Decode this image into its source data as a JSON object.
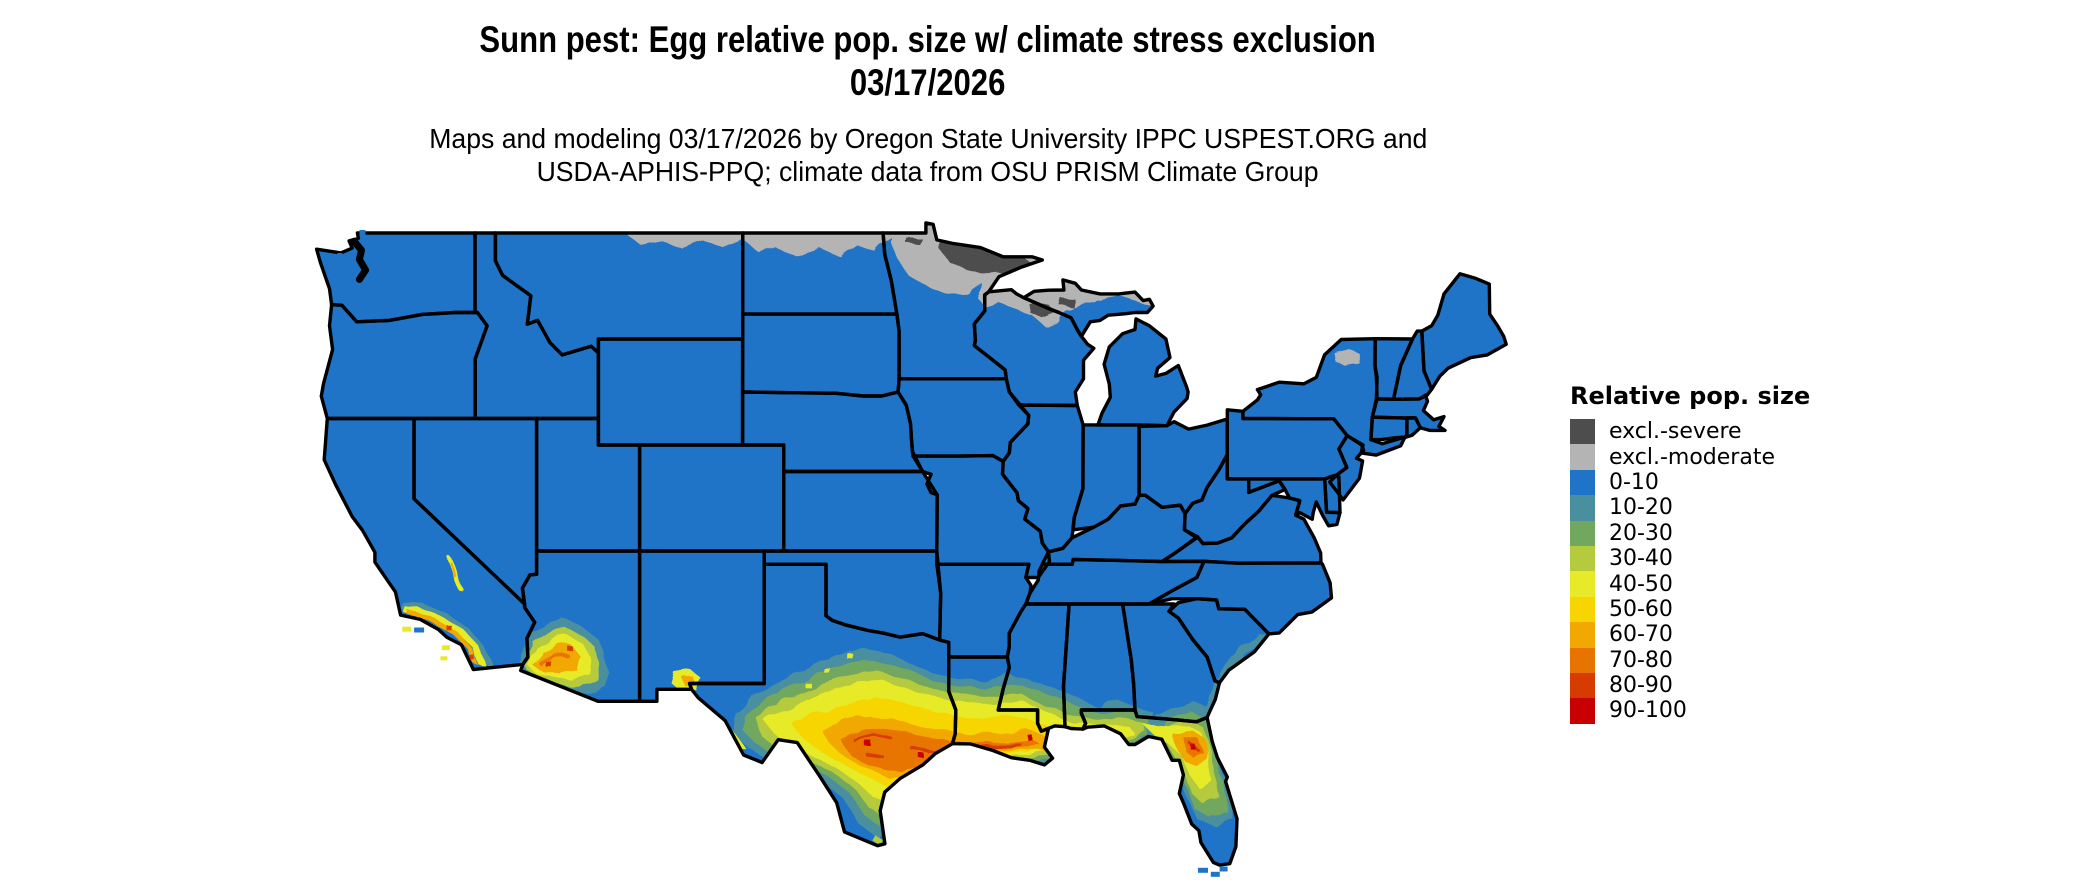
{
  "title": {
    "line1": "Sunn pest: Egg relative pop. size w/ climate stress exclusion",
    "line2": "03/17/2026"
  },
  "subtitle": {
    "line1": "Maps and modeling 03/17/2026 by Oregon State University IPPC USPEST.ORG and",
    "line2": "USDA-APHIS-PPQ; climate data from OSU PRISM Climate Group"
  },
  "legend": {
    "title": "Relative pop. size",
    "entries": [
      {
        "key": "excl_severe",
        "label": "excl.-severe",
        "color": "#4d4d4d"
      },
      {
        "key": "excl_moderate",
        "label": "excl.-moderate",
        "color": "#b4b4b4"
      },
      {
        "key": "r0",
        "label": "0-10",
        "color": "#1f74c7"
      },
      {
        "key": "r10",
        "label": "10-20",
        "color": "#4a8f9f"
      },
      {
        "key": "r20",
        "label": "20-30",
        "color": "#72a75f"
      },
      {
        "key": "r30",
        "label": "30-40",
        "color": "#b6ca3d"
      },
      {
        "key": "r40",
        "label": "40-50",
        "color": "#e7ea28"
      },
      {
        "key": "r50",
        "label": "50-60",
        "color": "#f7d500"
      },
      {
        "key": "r60",
        "label": "60-70",
        "color": "#f1a800"
      },
      {
        "key": "r70",
        "label": "70-80",
        "color": "#e87400"
      },
      {
        "key": "r80",
        "label": "80-90",
        "color": "#d63c00"
      },
      {
        "key": "r90",
        "label": "90-100",
        "color": "#c80000"
      }
    ]
  },
  "map": {
    "base_fill": "#1f74c7",
    "state_border_color": "#000000",
    "background": "#ffffff"
  }
}
